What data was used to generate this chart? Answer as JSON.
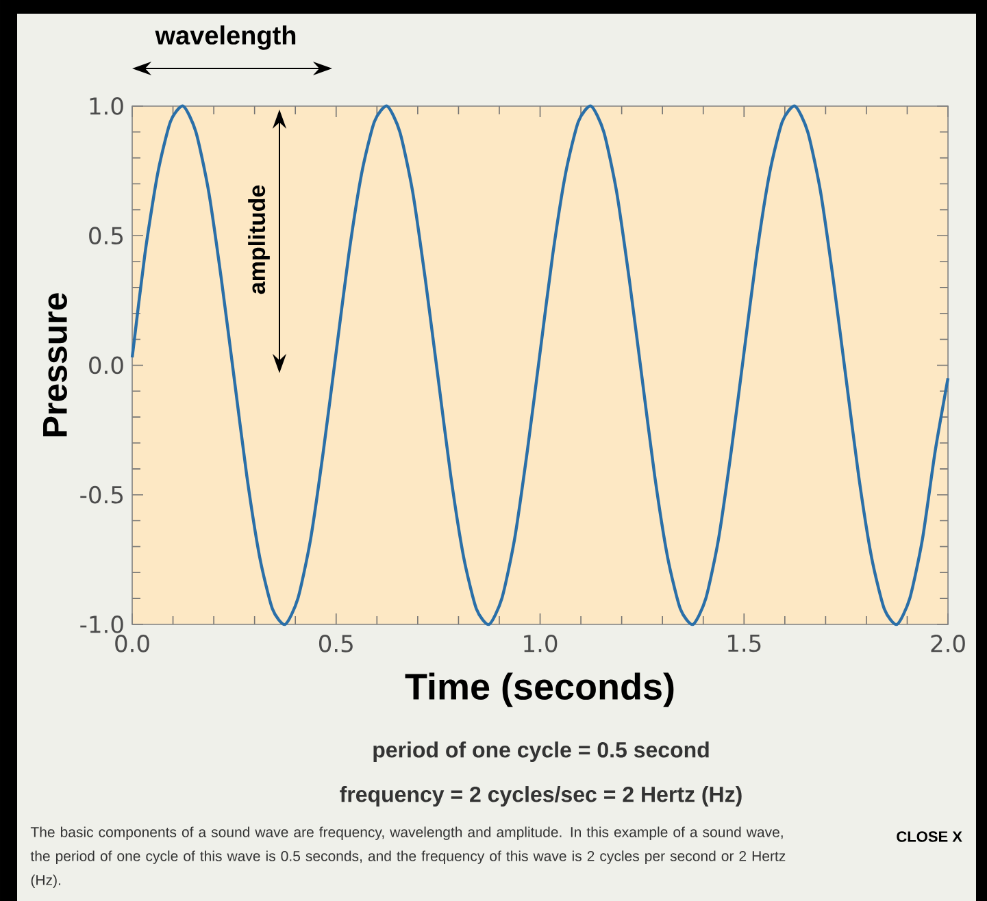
{
  "chart_data": {
    "type": "line",
    "xlabel": "Time (seconds)",
    "ylabel": "Pressure",
    "xlim": [
      0,
      2
    ],
    "ylim": [
      -1,
      1
    ],
    "xticks": [
      {
        "value": 0,
        "label": "0.0"
      },
      {
        "value": 0.5,
        "label": "0.5"
      },
      {
        "value": 1,
        "label": "1.0"
      },
      {
        "value": 1.5,
        "label": "1.5"
      },
      {
        "value": 2,
        "label": "2.0"
      }
    ],
    "yticks": [
      {
        "value": -1,
        "label": "-1.0"
      },
      {
        "value": -0.5,
        "label": "-0.5"
      },
      {
        "value": 0,
        "label": "0.0"
      },
      {
        "value": 0.5,
        "label": "0.5"
      },
      {
        "value": 1,
        "label": "1.0"
      }
    ],
    "x": [
      0,
      0.03125,
      0.0625,
      0.09375,
      0.125,
      0.15625,
      0.1875,
      0.21875,
      0.25,
      0.28125,
      0.3125,
      0.34375,
      0.375,
      0.40625,
      0.4375,
      0.46875,
      0.5,
      0.53125,
      0.5625,
      0.59375,
      0.625,
      0.65625,
      0.6875,
      0.71875,
      0.75,
      0.78125,
      0.8125,
      0.84375,
      0.875,
      0.90625,
      0.9375,
      0.96875,
      1,
      1.03125,
      1.0625,
      1.09375,
      1.125,
      1.15625,
      1.1875,
      1.21875,
      1.25,
      1.28125,
      1.3125,
      1.34375,
      1.375,
      1.40625,
      1.4375,
      1.46875,
      1.5,
      1.53125,
      1.5625,
      1.59375,
      1.625,
      1.65625,
      1.6875,
      1.71875,
      1.75,
      1.78125,
      1.8125,
      1.84375,
      1.875,
      1.90625,
      1.9375,
      1.96875,
      2
    ],
    "series": [
      {
        "color": "#2a6fa8",
        "values": [
          0.03,
          0.43,
          0.74,
          0.94,
          1.0,
          0.9,
          0.67,
          0.33,
          -0.05,
          -0.43,
          -0.74,
          -0.94,
          -1.0,
          -0.9,
          -0.67,
          -0.33,
          0.05,
          0.43,
          0.74,
          0.94,
          1.0,
          0.9,
          0.67,
          0.33,
          -0.05,
          -0.43,
          -0.74,
          -0.94,
          -1.0,
          -0.9,
          -0.67,
          -0.33,
          0.05,
          0.43,
          0.74,
          0.94,
          1.0,
          0.9,
          0.67,
          0.33,
          -0.05,
          -0.43,
          -0.74,
          -0.94,
          -1.0,
          -0.9,
          -0.67,
          -0.33,
          0.05,
          0.43,
          0.74,
          0.94,
          1.0,
          0.9,
          0.67,
          0.33,
          -0.05,
          -0.43,
          -0.74,
          -0.94,
          -1.0,
          -0.9,
          -0.67,
          -0.33,
          -0.05
        ]
      }
    ],
    "annotations": [
      "wavelength",
      "amplitude",
      "period of one cycle = 0.5 second",
      "frequency = 2 cycles/sec = 2 Hertz (Hz)",
      "The basic components of a sound wave are frequency, wavelength and amplitude. In this example of a sound wave, the period of one cycle of this wave is 0.5 seconds, and the frequency of this wave is 2 cycles per second or 2 Hertz (Hz).",
      "CLOSE X"
    ]
  }
}
